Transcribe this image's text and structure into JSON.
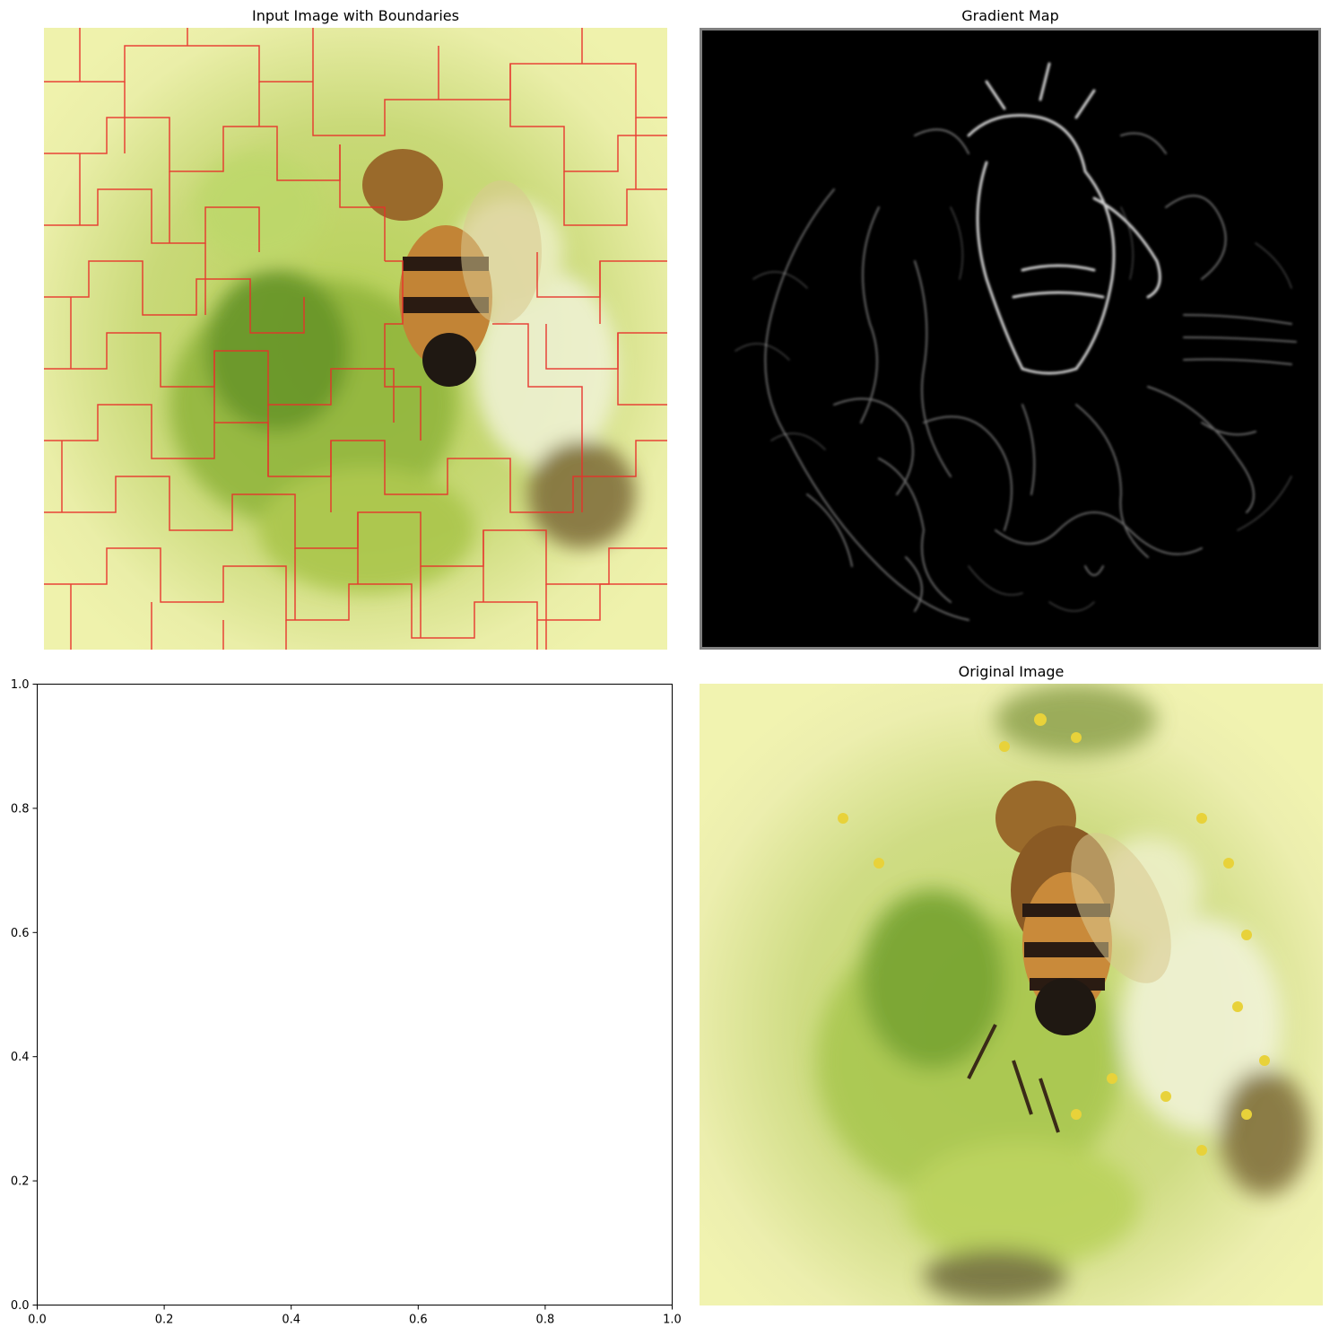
{
  "figure": {
    "panels": [
      {
        "title": "Input Image with Boundaries",
        "kind": "image-with-boundaries",
        "boundary_color": "#e8312a"
      },
      {
        "title": "Gradient Map",
        "kind": "gradient-map",
        "frame_color": "#7f7f7f"
      },
      {
        "title": "",
        "kind": "empty-axes"
      },
      {
        "title": "Original Image",
        "kind": "photo"
      }
    ]
  },
  "chart_data": {
    "type": "scatter",
    "title": "",
    "xlabel": "",
    "ylabel": "",
    "xlim": [
      0.0,
      1.0
    ],
    "ylim": [
      0.0,
      1.0
    ],
    "xticks": [
      "0.0",
      "0.2",
      "0.4",
      "0.6",
      "0.8",
      "1.0"
    ],
    "yticks": [
      "0.0",
      "0.2",
      "0.4",
      "0.6",
      "0.8",
      "1.0"
    ],
    "series": [],
    "grid": false
  }
}
